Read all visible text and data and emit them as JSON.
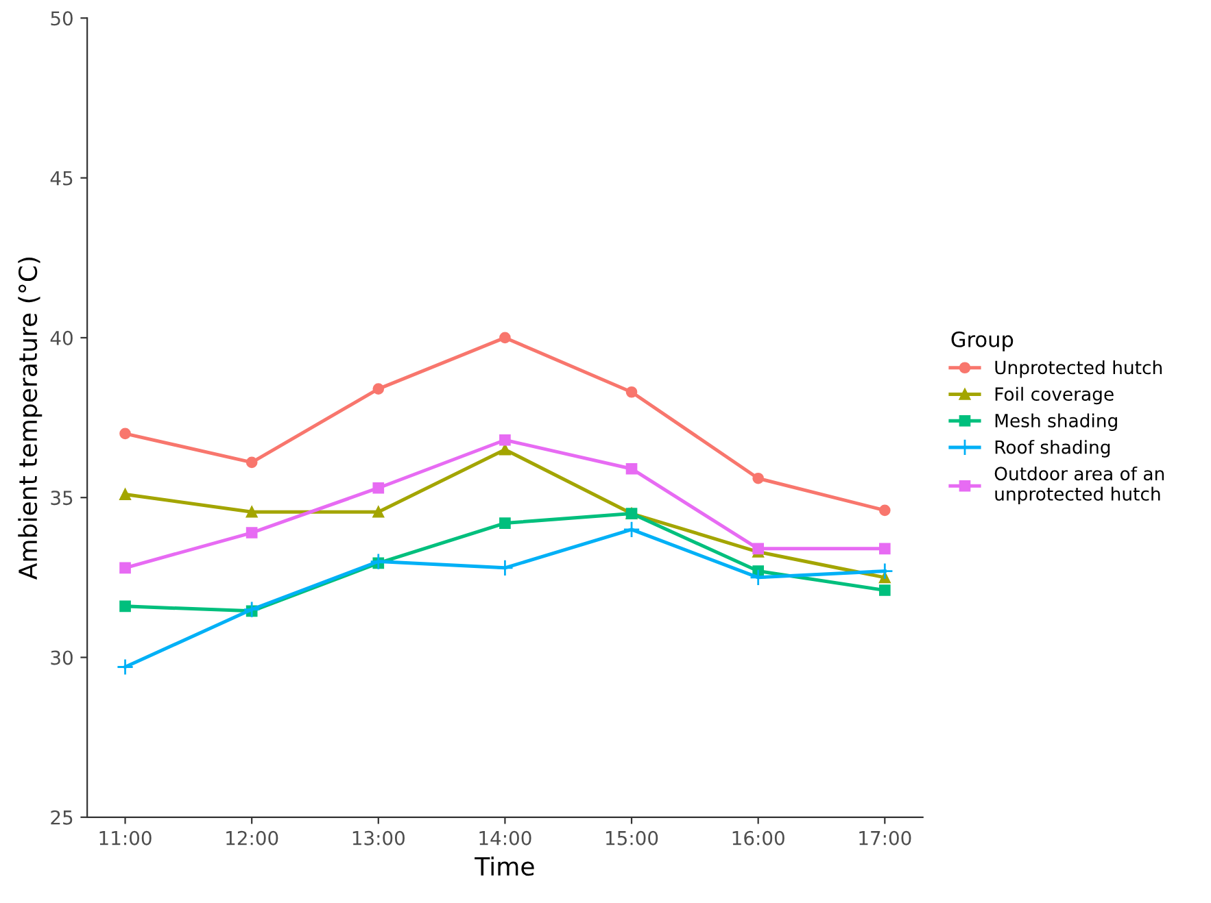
{
  "chart_data": {
    "type": "line",
    "xlabel": "Time",
    "ylabel": "Ambient temperature (°C)",
    "legend_title": "Group",
    "categories": [
      "11:00",
      "12:00",
      "13:00",
      "14:00",
      "15:00",
      "16:00",
      "17:00"
    ],
    "ylim": [
      25,
      50
    ],
    "yticks": [
      25,
      30,
      35,
      40,
      45,
      50
    ],
    "grid": false,
    "legend": "right",
    "series": [
      {
        "name": "Unprotected hutch",
        "color": "#f8766d",
        "marker": "circle",
        "values": [
          37.0,
          36.1,
          38.4,
          40.0,
          38.3,
          35.6,
          34.6
        ]
      },
      {
        "name": "Foil coverage",
        "color": "#a3a500",
        "marker": "triangle",
        "values": [
          35.1,
          34.55,
          34.55,
          36.5,
          34.5,
          33.3,
          32.5
        ]
      },
      {
        "name": "Mesh shading",
        "color": "#00bf7d",
        "marker": "square",
        "values": [
          31.6,
          31.45,
          32.95,
          34.2,
          34.5,
          32.7,
          32.1
        ]
      },
      {
        "name": "Roof shading",
        "color": "#00b0f6",
        "marker": "cross",
        "values": [
          29.7,
          31.5,
          33.0,
          32.8,
          34.0,
          32.5,
          32.7
        ]
      },
      {
        "name": "Outdoor area of an\nunprotected hutch",
        "color": "#e76bf3",
        "marker": "square",
        "values": [
          32.8,
          33.9,
          35.3,
          36.8,
          35.9,
          33.4,
          33.4
        ]
      }
    ]
  }
}
